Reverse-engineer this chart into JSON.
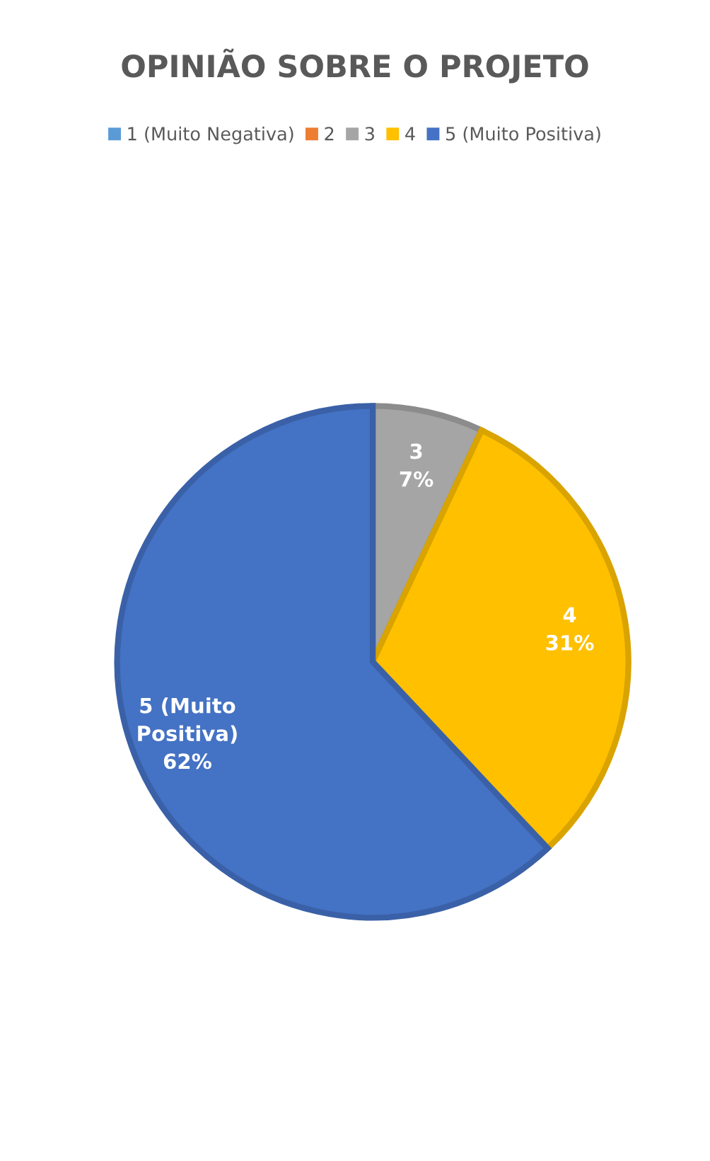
{
  "chart_data": {
    "type": "pie",
    "title": "OPINIÃO SOBRE O PROJETO",
    "categories": [
      "1 (Muito Negativa)",
      "2",
      "3",
      "4",
      "5 (Muito Positiva)"
    ],
    "values": [
      0,
      0,
      7,
      31,
      62
    ],
    "colors": [
      "#5b9bd5",
      "#ed7d31",
      "#a5a5a5",
      "#ffc000",
      "#4472c4"
    ],
    "value_labels": [
      null,
      null,
      "3\n7%",
      "4\n31%",
      "5 (Muito\nPositiva)\n62%"
    ],
    "legend": "top"
  }
}
